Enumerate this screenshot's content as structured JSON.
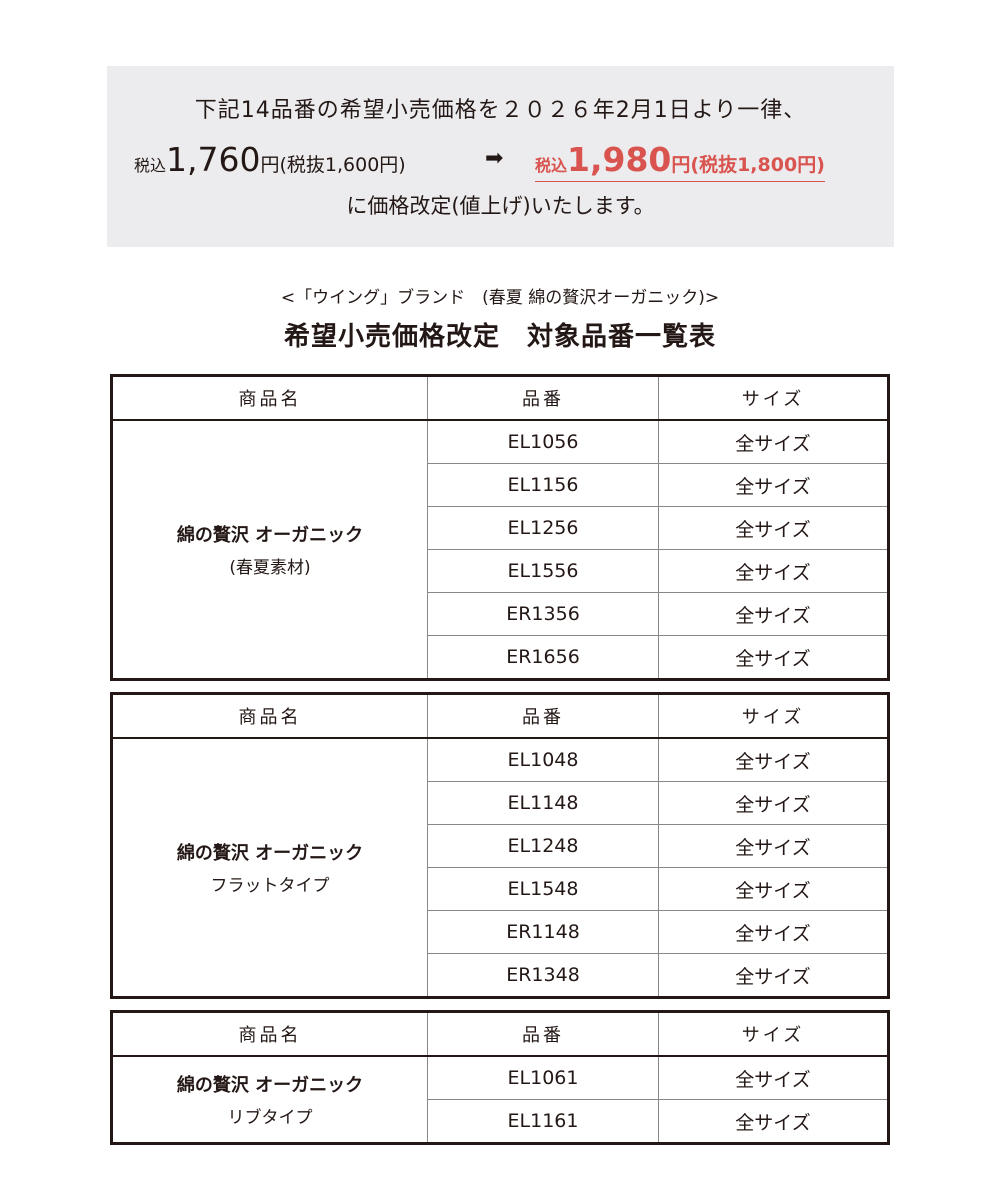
{
  "notice": {
    "line1": "下記14品番の希望小売価格を２０２６年2月1日より一律、",
    "old_prefix": "税込",
    "old_price": "1,760",
    "old_suffix": "円(税抜1,600円)",
    "arrow_icon": "right-arrow-icon",
    "new_prefix": "税込",
    "new_price": "1,980",
    "new_suffix": "円(税抜1,800円)",
    "line3": "に価格改定(値上げ)いたします。",
    "accent_color": "#d9544f"
  },
  "subtitle": "<「ウイング」ブランド　(春夏 綿の贅沢オーガニック)>",
  "title": "希望小売価格改定　対象品番一覧表",
  "headers": {
    "name": "商品名",
    "code": "品番",
    "size": "サイズ"
  },
  "tables": [
    {
      "name": "綿の贅沢 オーガニック",
      "sub": "(春夏素材)",
      "rows": [
        [
          "EL1056",
          "全サイズ"
        ],
        [
          "EL1156",
          "全サイズ"
        ],
        [
          "EL1256",
          "全サイズ"
        ],
        [
          "EL1556",
          "全サイズ"
        ],
        [
          "ER1356",
          "全サイズ"
        ],
        [
          "ER1656",
          "全サイズ"
        ]
      ]
    },
    {
      "name": "綿の贅沢 オーガニック",
      "sub": "フラットタイプ",
      "rows": [
        [
          "EL1048",
          "全サイズ"
        ],
        [
          "EL1148",
          "全サイズ"
        ],
        [
          "EL1248",
          "全サイズ"
        ],
        [
          "EL1548",
          "全サイズ"
        ],
        [
          "ER1148",
          "全サイズ"
        ],
        [
          "ER1348",
          "全サイズ"
        ]
      ]
    },
    {
      "name": "綿の贅沢 オーガニック",
      "sub": "リブタイプ",
      "rows": [
        [
          "EL1061",
          "全サイズ"
        ],
        [
          "EL1161",
          "全サイズ"
        ]
      ]
    }
  ]
}
